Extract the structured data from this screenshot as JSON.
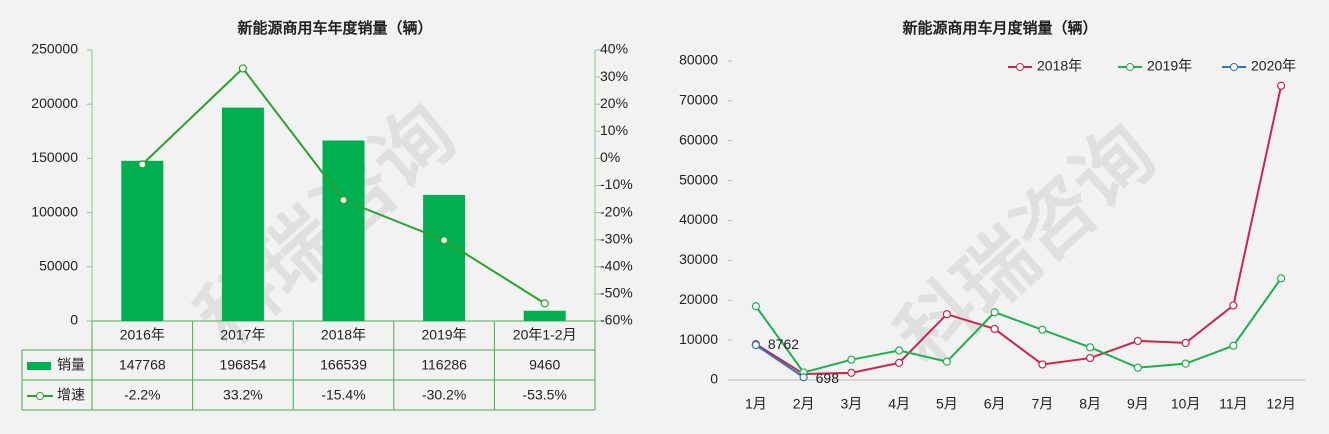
{
  "watermark": "科瑞咨询",
  "chart_data": [
    {
      "type": "bar",
      "title": "新能源商用车年度销量（辆）",
      "categories": [
        "2016年",
        "2017年",
        "2018年",
        "2019年",
        "20年1-2月"
      ],
      "series": [
        {
          "name": "销量",
          "type": "bar",
          "color": "#00b050",
          "values": [
            147768,
            196854,
            166539,
            116286,
            9460
          ]
        },
        {
          "name": "增速",
          "type": "line",
          "axis": "y2",
          "color": "#2ea02e",
          "values": [
            -2.2,
            33.2,
            -15.4,
            -30.2,
            -53.5
          ],
          "value_labels": [
            "-2.2%",
            "33.2%",
            "-15.4%",
            "-30.2%",
            "-53.5%"
          ]
        }
      ],
      "ylim": [
        0,
        250000
      ],
      "yticks": [
        0,
        50000,
        100000,
        150000,
        200000,
        250000
      ],
      "y2lim": [
        -60,
        40
      ],
      "y2ticks": [
        {
          "value": -60,
          "label": "-60%"
        },
        {
          "value": -50,
          "label": "-50%"
        },
        {
          "value": -40,
          "label": "-40%"
        },
        {
          "value": -30,
          "label": "-30%"
        },
        {
          "value": -20,
          "label": "-20%"
        },
        {
          "value": -10,
          "label": "-10%"
        },
        {
          "value": 0,
          "label": "0%"
        },
        {
          "value": 10,
          "label": "10%"
        },
        {
          "value": 20,
          "label": "20%"
        },
        {
          "value": 30,
          "label": "30%"
        },
        {
          "value": 40,
          "label": "40%"
        }
      ],
      "data_table": true
    },
    {
      "type": "line",
      "title": "新能源商用车月度销量（辆）",
      "categories": [
        "1月",
        "2月",
        "3月",
        "4月",
        "5月",
        "6月",
        "7月",
        "8月",
        "9月",
        "10月",
        "11月",
        "12月"
      ],
      "series": [
        {
          "name": "2018年",
          "color": "#c8264a",
          "values": [
            9000,
            1500,
            1800,
            4300,
            16500,
            12800,
            3900,
            5500,
            9800,
            9300,
            18700,
            73800
          ]
        },
        {
          "name": "2019年",
          "color": "#1db04d",
          "values": [
            18500,
            1900,
            5100,
            7400,
            4600,
            17000,
            12600,
            8200,
            3100,
            4100,
            8600,
            25500
          ]
        },
        {
          "name": "2020年",
          "color": "#2e75b6",
          "values": [
            8762,
            698,
            null,
            null,
            null,
            null,
            null,
            null,
            null,
            null,
            null,
            null
          ],
          "data_labels": true
        }
      ],
      "ylim": [
        0,
        80000
      ],
      "yticks": [
        0,
        10000,
        20000,
        30000,
        40000,
        50000,
        60000,
        70000,
        80000
      ],
      "legend": "top-right"
    }
  ]
}
